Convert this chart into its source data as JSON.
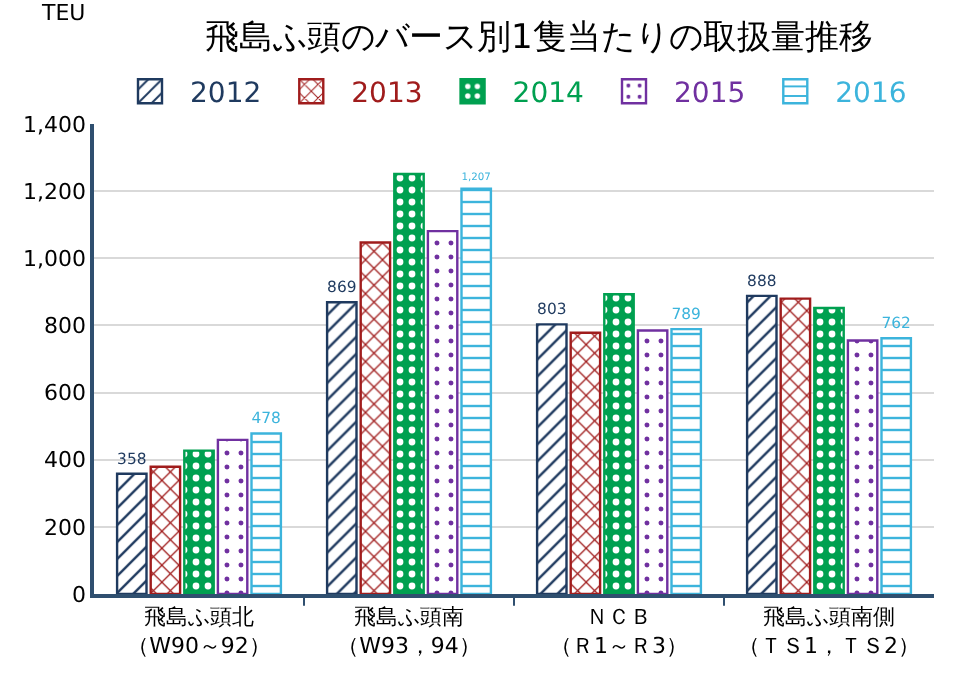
{
  "chart_data": {
    "type": "bar",
    "title": "飛島ふ頭のバース別1隻当たりの取扱量推移",
    "ylabel": "TEU",
    "categories": [
      "飛島ふ頭北（W90～92）",
      "飛島ふ頭南（W93，94）",
      "ＮＣＢ（Ｒ1～Ｒ3）",
      "飛島ふ頭南側（ＴＳ1，ＴＳ2）"
    ],
    "series": [
      {
        "name": "2012",
        "color": "#1f3a5f",
        "values": [
          358,
          869,
          803,
          888
        ],
        "value_labels": [
          "358",
          "869",
          "803",
          "888"
        ]
      },
      {
        "name": "2013",
        "color": "#a01c1c",
        "values": [
          379,
          1047,
          778,
          880
        ]
      },
      {
        "name": "2014",
        "color": "#00a050",
        "values": [
          427,
          1251,
          893,
          852
        ]
      },
      {
        "name": "2015",
        "color": "#7030a0",
        "values": [
          459,
          1081,
          785,
          755
        ]
      },
      {
        "name": "2016",
        "color": "#3cb4dc",
        "values": [
          478,
          1207,
          789,
          762
        ],
        "value_labels": [
          "478",
          "1,207",
          "789",
          "762"
        ]
      }
    ],
    "ylim": [
      0,
      1400
    ],
    "yticks": [
      0,
      {
        "value": 200,
        "label": "200"
      },
      {
        "value": 400,
        "label": "400"
      },
      {
        "value": 600,
        "label": "600"
      },
      {
        "value": 800,
        "label": "800"
      },
      {
        "value": 1000,
        "label": "1,000"
      },
      {
        "value": 1200,
        "label": "1,200"
      },
      {
        "value": 1400,
        "label": "1,400"
      }
    ],
    "grid": "y",
    "legend": "top"
  }
}
